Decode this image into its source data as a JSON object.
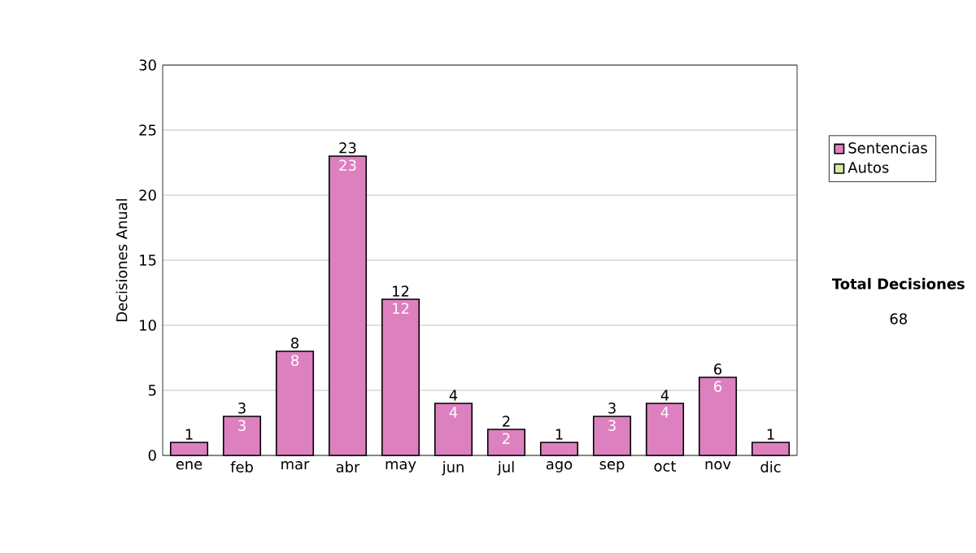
{
  "chart_data": {
    "type": "bar",
    "stacked": true,
    "ylabel": "Decisiones Anual",
    "categories": [
      "ene",
      "feb",
      "mar",
      "abr",
      "may",
      "jun",
      "jul",
      "ago",
      "sep",
      "oct",
      "nov",
      "dic"
    ],
    "series": [
      {
        "name": "Sentencias",
        "color": "#dd80c0",
        "values": [
          1,
          3,
          8,
          23,
          12,
          4,
          2,
          1,
          3,
          4,
          6,
          1
        ],
        "value_labels": [
          null,
          "3",
          "8",
          "23",
          "12",
          "4",
          "2",
          null,
          "3",
          "4",
          "6",
          null
        ]
      },
      {
        "name": "Autos",
        "color": "#d4eca0",
        "values": [
          0,
          0,
          0,
          0,
          0,
          0,
          0,
          0,
          0,
          0,
          0,
          0
        ]
      }
    ],
    "totals": [
      "1",
      "3",
      "8",
      "23",
      "12",
      "4",
      "2",
      "1",
      "3",
      "4",
      "6",
      "1"
    ],
    "ylim": [
      0,
      30
    ],
    "yticks": [
      0,
      5,
      10,
      15,
      20,
      25,
      30
    ],
    "grid": "y",
    "legend": "right",
    "annotations": [
      "Total Decisiones",
      "68"
    ]
  }
}
